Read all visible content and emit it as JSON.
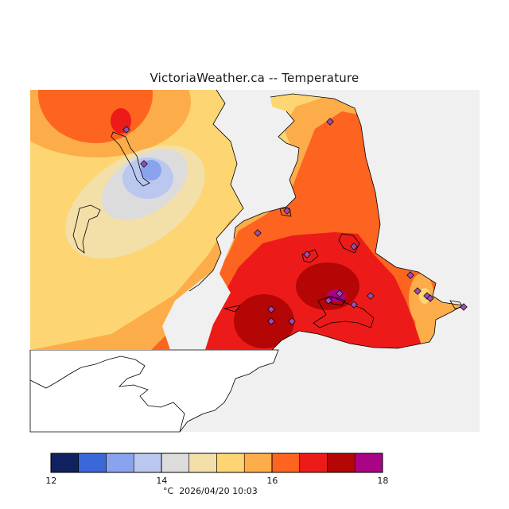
{
  "title": "VictoriaWeather.ca -- Temperature",
  "colors": {
    "ocean": "#f0f0f0",
    "bin_12_125": "#10215f",
    "bin_125_13": "#3a68d8",
    "bin_13_135": "#8aa3ee",
    "bin_135_14": "#bac8f0",
    "bin_14_145": "#dcdcdc",
    "bin_145_15": "#f3dfa8",
    "bin_15_155": "#fdd673",
    "bin_155_16": "#fcad49",
    "bin_16_165": "#fd6420",
    "bin_165_17": "#ec1b19",
    "bin_17_175": "#b50606",
    "bin_175_18": "#a90386",
    "station_marker": "#9a4fb0"
  },
  "legend": {
    "tick_labels": [
      "12",
      "14",
      "16",
      "18"
    ],
    "unit": "°C",
    "timestamp": "2026/04/20 10:03",
    "bins": [
      {
        "from": 12.0,
        "to": 12.5,
        "color": "#10215f"
      },
      {
        "from": 12.5,
        "to": 13.0,
        "color": "#3a68d8"
      },
      {
        "from": 13.0,
        "to": 13.5,
        "color": "#8aa3ee"
      },
      {
        "from": 13.5,
        "to": 14.0,
        "color": "#bac8f0"
      },
      {
        "from": 14.0,
        "to": 14.5,
        "color": "#dcdcdc"
      },
      {
        "from": 14.5,
        "to": 15.0,
        "color": "#f3dfa8"
      },
      {
        "from": 15.0,
        "to": 15.5,
        "color": "#fdd673"
      },
      {
        "from": 15.5,
        "to": 16.0,
        "color": "#fcad49"
      },
      {
        "from": 16.0,
        "to": 16.5,
        "color": "#fd6420"
      },
      {
        "from": 16.5,
        "to": 17.0,
        "color": "#ec1b19"
      },
      {
        "from": 17.0,
        "to": 17.5,
        "color": "#b50606"
      },
      {
        "from": 17.5,
        "to": 18.0,
        "color": "#a90386"
      }
    ]
  }
}
